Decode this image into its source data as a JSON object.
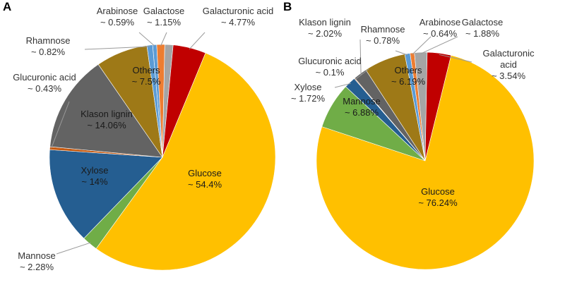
{
  "chart_data": [
    {
      "type": "pie",
      "panel": "A",
      "slices": [
        {
          "name": "Arabinose",
          "pct_label": "~ 0.59%",
          "value": 0.59,
          "color": "#5b9bd5"
        },
        {
          "name": "Galactose",
          "pct_label": "~ 1.15%",
          "value": 1.15,
          "color": "#ed7d31"
        },
        {
          "name": "",
          "pct_label": "",
          "value": 1.2,
          "color": "#a5a5a5"
        },
        {
          "name": "Galacturonic acid",
          "pct_label": "~ 4.77%",
          "value": 4.77,
          "color": "#c00000"
        },
        {
          "name": "Glucose",
          "pct_label": "~ 54.4%",
          "value": 54.4,
          "color": "#ffc000"
        },
        {
          "name": "Mannose",
          "pct_label": "~ 2.28%",
          "value": 2.28,
          "color": "#70ad47"
        },
        {
          "name": "Xylose",
          "pct_label": "~ 14%",
          "value": 14.0,
          "color": "#255e91"
        },
        {
          "name": "Glucuronic acid",
          "pct_label": "~ 0.43%",
          "value": 0.43,
          "color": "#c55a11"
        },
        {
          "name": "Klason lignin",
          "pct_label": "~ 14.06%",
          "value": 14.06,
          "color": "#636363"
        },
        {
          "name": "Others",
          "pct_label": "~ 7.5%",
          "value": 7.5,
          "color": "#9e7917"
        },
        {
          "name": "Rhamnose",
          "pct_label": "~ 0.82%",
          "value": 0.82,
          "color": "#5b9bd5"
        }
      ]
    },
    {
      "type": "pie",
      "panel": "B",
      "slices": [
        {
          "name": "Arabinose",
          "pct_label": "~ 0.64%",
          "value": 0.64,
          "color": "#ed7d31"
        },
        {
          "name": "Galactose",
          "pct_label": "~ 1.88%",
          "value": 1.88,
          "color": "#a5a5a5"
        },
        {
          "name": "Galacturonic acid",
          "pct_label": "~ 3.54%",
          "value": 3.54,
          "color": "#c00000"
        },
        {
          "name": "Glucose",
          "pct_label": "~ 76.24%",
          "value": 76.24,
          "color": "#ffc000"
        },
        {
          "name": "Mannose",
          "pct_label": "~ 6.88%",
          "value": 6.88,
          "color": "#70ad47"
        },
        {
          "name": "Xylose",
          "pct_label": "~ 1.72%",
          "value": 1.72,
          "color": "#255e91"
        },
        {
          "name": "Glucuronic acid",
          "pct_label": "~ 0.1%",
          "value": 0.1,
          "color": "#c55a11"
        },
        {
          "name": "Klason lignin",
          "pct_label": "~ 2.02%",
          "value": 2.02,
          "color": "#636363"
        },
        {
          "name": "Others",
          "pct_label": "~ 6.19%",
          "value": 6.19,
          "color": "#9e7917"
        },
        {
          "name": "Rhamnose",
          "pct_label": "~ 0.78%",
          "value": 0.78,
          "color": "#5b9bd5"
        }
      ]
    }
  ]
}
